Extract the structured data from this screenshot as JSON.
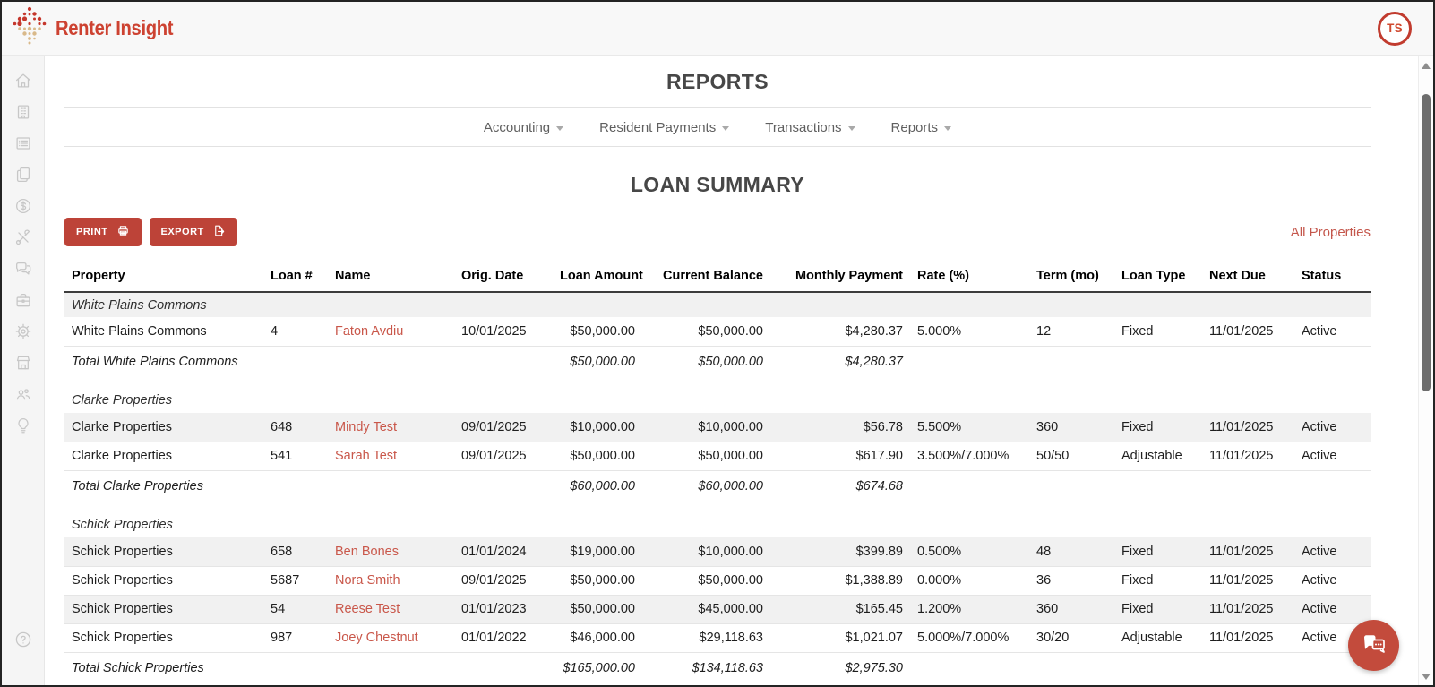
{
  "brand": {
    "name": "Renter Insight",
    "logo_icon": "dot-diamond-logo"
  },
  "topbar": {
    "avatar_initials": "TS"
  },
  "sidebar": {
    "items": [
      {
        "icon": "home-icon"
      },
      {
        "icon": "building-icon"
      },
      {
        "icon": "list-icon"
      },
      {
        "icon": "documents-icon"
      },
      {
        "icon": "dollar-icon"
      },
      {
        "icon": "tools-icon"
      },
      {
        "icon": "messages-icon"
      },
      {
        "icon": "toolbox-icon"
      },
      {
        "icon": "settings-icon"
      },
      {
        "icon": "store-icon"
      },
      {
        "icon": "people-icon"
      },
      {
        "icon": "lightbulb-icon"
      }
    ],
    "help_icon": "help-icon"
  },
  "page": {
    "title": "REPORTS"
  },
  "nav": {
    "items": [
      {
        "label": "Accounting"
      },
      {
        "label": "Resident Payments"
      },
      {
        "label": "Transactions"
      },
      {
        "label": "Reports"
      }
    ]
  },
  "report": {
    "title": "LOAN SUMMARY",
    "print_label": "PRINT",
    "export_label": "EXPORT",
    "filter_label": "All Properties"
  },
  "table": {
    "columns": [
      {
        "label": "Property",
        "align": "left"
      },
      {
        "label": "Loan #",
        "align": "left"
      },
      {
        "label": "Name",
        "align": "left"
      },
      {
        "label": "Orig. Date",
        "align": "left"
      },
      {
        "label": "Loan Amount",
        "align": "right"
      },
      {
        "label": "Current Balance",
        "align": "right"
      },
      {
        "label": "Monthly Payment",
        "align": "right"
      },
      {
        "label": "Rate (%)",
        "align": "left"
      },
      {
        "label": "Term (mo)",
        "align": "left"
      },
      {
        "label": "Loan Type",
        "align": "left"
      },
      {
        "label": "Next Due",
        "align": "left"
      },
      {
        "label": "Status",
        "align": "left"
      }
    ],
    "groups": [
      {
        "name": "White Plains Commons",
        "rows": [
          [
            "White Plains Commons",
            "4",
            "Faton Avdiu",
            "10/01/2025",
            "$50,000.00",
            "$50,000.00",
            "$4,280.37",
            "5.000%",
            "12",
            "Fixed",
            "11/01/2025",
            "Active"
          ]
        ],
        "total": {
          "label": "Total White Plains Commons",
          "loan_amount": "$50,000.00",
          "current_balance": "$50,000.00",
          "monthly_payment": "$4,280.37"
        }
      },
      {
        "name": "Clarke Properties",
        "rows": [
          [
            "Clarke Properties",
            "648",
            "Mindy Test",
            "09/01/2025",
            "$10,000.00",
            "$10,000.00",
            "$56.78",
            "5.500%",
            "360",
            "Fixed",
            "11/01/2025",
            "Active"
          ],
          [
            "Clarke Properties",
            "541",
            "Sarah Test",
            "09/01/2025",
            "$50,000.00",
            "$50,000.00",
            "$617.90",
            "3.500%/7.000%",
            "50/50",
            "Adjustable",
            "11/01/2025",
            "Active"
          ]
        ],
        "total": {
          "label": "Total Clarke Properties",
          "loan_amount": "$60,000.00",
          "current_balance": "$60,000.00",
          "monthly_payment": "$674.68"
        }
      },
      {
        "name": "Schick Properties",
        "rows": [
          [
            "Schick Properties",
            "658",
            "Ben Bones",
            "01/01/2024",
            "$19,000.00",
            "$10,000.00",
            "$399.89",
            "0.500%",
            "48",
            "Fixed",
            "11/01/2025",
            "Active"
          ],
          [
            "Schick Properties",
            "5687",
            "Nora Smith",
            "09/01/2025",
            "$50,000.00",
            "$50,000.00",
            "$1,388.89",
            "0.000%",
            "36",
            "Fixed",
            "11/01/2025",
            "Active"
          ],
          [
            "Schick Properties",
            "54",
            "Reese Test",
            "01/01/2023",
            "$50,000.00",
            "$45,000.00",
            "$165.45",
            "1.200%",
            "360",
            "Fixed",
            "11/01/2025",
            "Active"
          ],
          [
            "Schick Properties",
            "987",
            "Joey Chestnut",
            "01/01/2022",
            "$46,000.00",
            "$29,118.63",
            "$1,021.07",
            "5.000%/7.000%",
            "30/20",
            "Adjustable",
            "11/01/2025",
            "Active"
          ]
        ],
        "total": {
          "label": "Total Schick Properties",
          "loan_amount": "$165,000.00",
          "current_balance": "$134,118.63",
          "monthly_payment": "$2,975.30"
        }
      }
    ]
  },
  "colors": {
    "accent_red": "#bd4338",
    "link_red": "#c9574a",
    "brand_red": "#cd4231",
    "row_stripe": "#f1f1f1",
    "title_gray": "#474747"
  }
}
